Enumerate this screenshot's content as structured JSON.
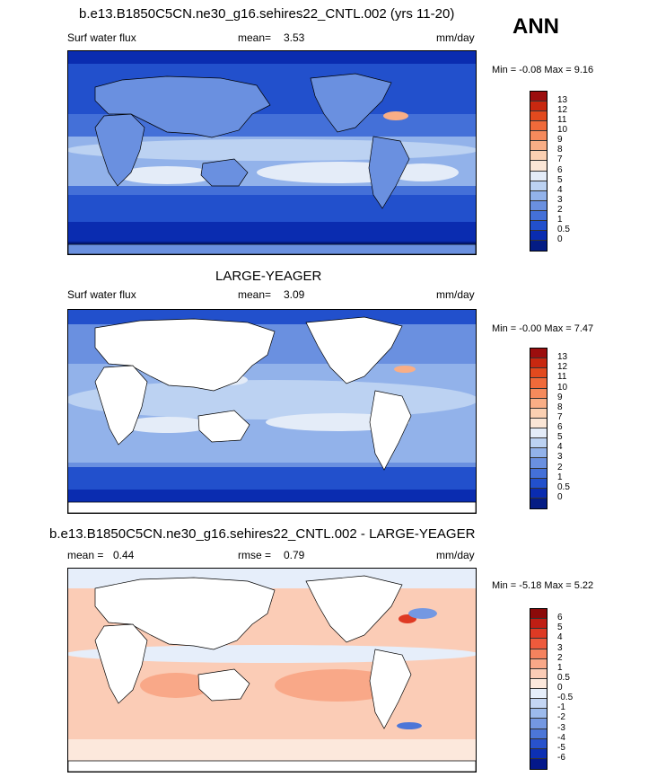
{
  "season": "ANN",
  "panels": [
    {
      "id": "top",
      "title": "b.e13.B1850C5CN.ne30_g16.sehires22_CNTL.002 (yrs 11-20)",
      "left_label": "Surf water flux",
      "mean_label": "mean=",
      "mean_value": "3.53",
      "units": "mm/day",
      "min_label": "Min =",
      "min_value": "-0.08",
      "max_label": "Max =",
      "max_value": "9.16",
      "land_masked": false,
      "levels": [
        "13",
        "12",
        "11",
        "10",
        "9",
        "8",
        "7",
        "6",
        "5",
        "4",
        "3",
        "2",
        "1",
        "0.5",
        "0"
      ],
      "colors": [
        "#9c0e0e",
        "#c82810",
        "#e24a1e",
        "#f06a3a",
        "#f58a5c",
        "#f9ae86",
        "#fbd0b2",
        "#fbe6d6",
        "#e4ecf8",
        "#bcd2f2",
        "#92b2ea",
        "#6a90e0",
        "#4470d8",
        "#2250cc",
        "#0a2cb0",
        "#041c84"
      ]
    },
    {
      "id": "middle",
      "title": "LARGE-YEAGER",
      "left_label": "Surf water flux",
      "mean_label": "mean=",
      "mean_value": "3.09",
      "units": "mm/day",
      "min_label": "Min =",
      "min_value": "-0.00",
      "max_label": "Max =",
      "max_value": "7.47",
      "land_masked": true,
      "levels": [
        "13",
        "12",
        "11",
        "10",
        "9",
        "8",
        "7",
        "6",
        "5",
        "4",
        "3",
        "2",
        "1",
        "0.5",
        "0"
      ],
      "colors": [
        "#9c0e0e",
        "#c82810",
        "#e24a1e",
        "#f06a3a",
        "#f58a5c",
        "#f9ae86",
        "#fbd0b2",
        "#fbe6d6",
        "#e4ecf8",
        "#bcd2f2",
        "#92b2ea",
        "#6a90e0",
        "#4470d8",
        "#2250cc",
        "#0a2cb0",
        "#041c84"
      ]
    },
    {
      "id": "bottom",
      "title": "b.e13.B1850C5CN.ne30_g16.sehires22_CNTL.002 - LARGE-YEAGER",
      "left_label": "mean =",
      "left_value": "0.44",
      "mean_label": "rmse =",
      "mean_value": "0.79",
      "units": "mm/day",
      "min_label": "Min =",
      "min_value": "-5.18",
      "max_label": "Max =",
      "max_value": "5.22",
      "land_masked": true,
      "levels": [
        "6",
        "5",
        "4",
        "3",
        "2",
        "1",
        "0.5",
        "0",
        "-0.5",
        "-1",
        "-2",
        "-3",
        "-4",
        "-5",
        "-6"
      ],
      "colors": [
        "#8c0a0a",
        "#c01e14",
        "#de3a24",
        "#ee5a3c",
        "#f5825e",
        "#f9a888",
        "#fbccb6",
        "#fce8dc",
        "#e6eefa",
        "#c4d6f4",
        "#9cbaec",
        "#7498e2",
        "#4c76d8",
        "#2852cc",
        "#0c30b4",
        "#04188a"
      ]
    }
  ]
}
